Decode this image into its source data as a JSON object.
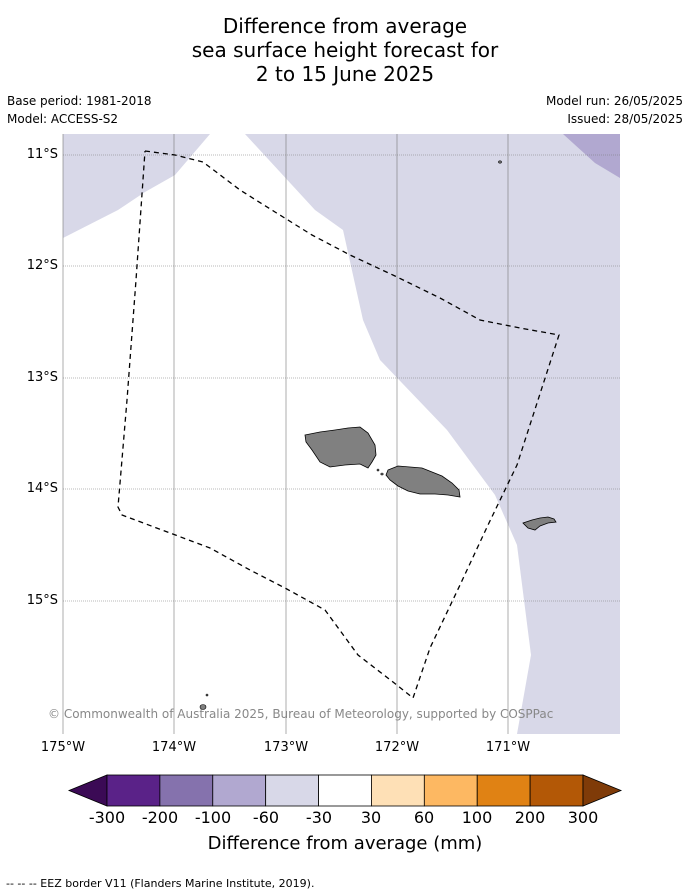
{
  "title": {
    "line1": "Difference from average",
    "line2": "sea surface height forecast for",
    "line3": "2 to 15 June 2025"
  },
  "meta": {
    "base_period": "Base period: 1981-2018",
    "model": "Model: ACCESS-S2",
    "model_run": "Model run: 26/05/2025",
    "issued": "Issued: 28/05/2025"
  },
  "map": {
    "lat_labels": [
      "11°S",
      "12°S",
      "13°S",
      "14°S",
      "15°S"
    ],
    "lon_labels": [
      "175°W",
      "174°W",
      "173°W",
      "172°W",
      "171°W"
    ],
    "copyright": "© Commonwealth of Australia 2025, Bureau of Meteorology, supported by COSPPac",
    "colors": {
      "ocean_neutral": "#ffffff",
      "anomaly_minus_30_60": "#d8d8e8",
      "anomaly_minus_60_100": "#b1a8d0",
      "land": "#808080",
      "eez_line": "#000000"
    }
  },
  "colorbar": {
    "labels": [
      "-300",
      "-200",
      "-100",
      "-60",
      "-30",
      "30",
      "60",
      "100",
      "200",
      "300"
    ],
    "colors": [
      "#3b0a55",
      "#5a2288",
      "#8572ad",
      "#b1a8d0",
      "#d8d8e8",
      "#ffffff",
      "#fee0b6",
      "#fdb862",
      "#e08214",
      "#b35806",
      "#7f3b08"
    ],
    "title": "Difference from average (mm)"
  },
  "footnote": "--  --  -- EEZ border V11 (Flanders Marine Institute, 2019)."
}
